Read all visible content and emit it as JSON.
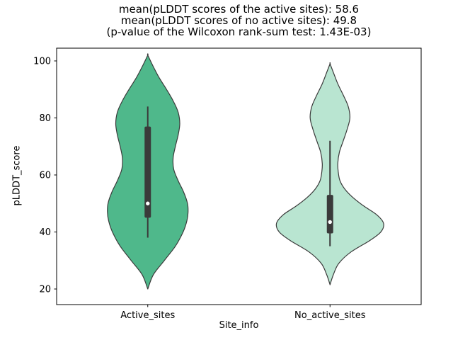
{
  "chart_data": {
    "type": "violin",
    "title_lines": [
      "mean(pLDDT scores of the active sites): 58.6",
      "mean(pLDDT scores of no active sites): 49.8",
      "(p-value of the Wilcoxon rank-sum test: 1.43E-03)"
    ],
    "xlabel": "Site_info",
    "ylabel": "pLDDT_score",
    "yticks": [
      20,
      40,
      60,
      80,
      100
    ],
    "ylim": [
      14,
      104
    ],
    "categories": [
      "Active_sites",
      "No_active_sites"
    ],
    "legend": "none",
    "grid": false,
    "colors": {
      "spine": "#000000",
      "box": "#3a3a3a",
      "median_dot": "#ffffff",
      "background": "#ffffff"
    },
    "series": [
      {
        "name": "Active_sites",
        "fill_color": "#4fb88b",
        "edge_color": "#3a3a3a",
        "stats": {
          "median": 50,
          "q1": 45,
          "q3": 77,
          "whisker_low": 38,
          "whisker_high": 84,
          "min": 20,
          "max": 102,
          "mean": 58.6
        },
        "kde": [
          [
            20,
            0
          ],
          [
            25,
            0.1
          ],
          [
            30,
            0.3
          ],
          [
            35,
            0.5
          ],
          [
            40,
            0.64
          ],
          [
            44,
            0.71
          ],
          [
            47,
            0.73
          ],
          [
            50,
            0.72
          ],
          [
            54,
            0.65
          ],
          [
            58,
            0.55
          ],
          [
            62,
            0.47
          ],
          [
            66,
            0.46
          ],
          [
            70,
            0.5
          ],
          [
            74,
            0.55
          ],
          [
            78,
            0.58
          ],
          [
            82,
            0.55
          ],
          [
            86,
            0.46
          ],
          [
            90,
            0.34
          ],
          [
            94,
            0.21
          ],
          [
            98,
            0.1
          ],
          [
            102,
            0
          ]
        ]
      },
      {
        "name": "No_active_sites",
        "fill_color": "#b9e5d1",
        "edge_color": "#3a3a3a",
        "stats": {
          "median": 43.5,
          "q1": 39.5,
          "q3": 53,
          "whisker_low": 35,
          "whisker_high": 72,
          "min": 21.5,
          "max": 99,
          "mean": 49.8
        },
        "kde": [
          [
            21.5,
            0
          ],
          [
            25,
            0.06
          ],
          [
            29,
            0.16
          ],
          [
            33,
            0.38
          ],
          [
            37,
            0.72
          ],
          [
            40,
            0.92
          ],
          [
            43,
            0.97
          ],
          [
            46,
            0.85
          ],
          [
            49,
            0.62
          ],
          [
            52,
            0.42
          ],
          [
            55,
            0.27
          ],
          [
            58,
            0.18
          ],
          [
            61,
            0.15
          ],
          [
            64,
            0.14
          ],
          [
            68,
            0.17
          ],
          [
            72,
            0.24
          ],
          [
            76,
            0.31
          ],
          [
            80,
            0.36
          ],
          [
            84,
            0.33
          ],
          [
            88,
            0.24
          ],
          [
            92,
            0.14
          ],
          [
            96,
            0.06
          ],
          [
            99,
            0
          ]
        ]
      }
    ]
  }
}
